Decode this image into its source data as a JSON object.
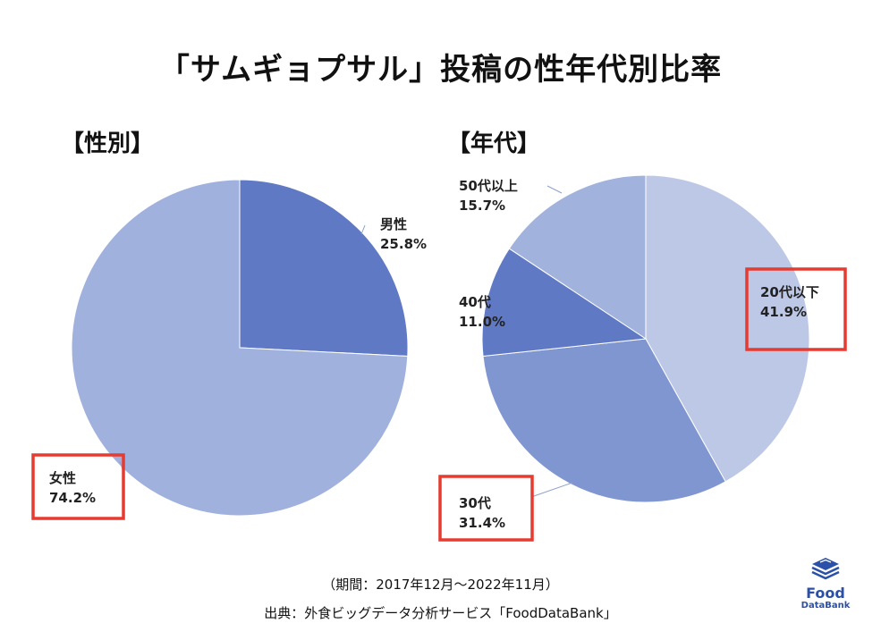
{
  "title": "「サムギョプサル」投稿の性年代別比率",
  "charts": {
    "gender_label": "【性別】",
    "age_label": "【年代】"
  },
  "footer": {
    "period": "（期間：2017年12月～2022年11月）",
    "source": "出典：外食ビッグデータ分析サービス「FoodDataBank」"
  },
  "logo": {
    "name": "Food",
    "sub": "DataBank",
    "icon": "stacked-layers-icon"
  },
  "colors": {
    "male": "#6079c4",
    "female": "#9fb1dc",
    "age_20s": "#bcc8e6",
    "age_30s": "#7f96d1",
    "age_40s": "#6079c4",
    "age_50s": "#a1b3dc",
    "highlight": "#e53b30"
  },
  "chart_data": [
    {
      "type": "pie",
      "title": "【性別】",
      "slices": [
        {
          "label": "男性",
          "value": 25.8,
          "display": "25.8%"
        },
        {
          "label": "女性",
          "value": 74.2,
          "display": "74.2%",
          "highlight": true
        }
      ]
    },
    {
      "type": "pie",
      "title": "【年代】",
      "slices": [
        {
          "label": "20代以下",
          "value": 41.9,
          "display": "41.9%",
          "highlight": true
        },
        {
          "label": "30代",
          "value": 31.4,
          "display": "31.4%",
          "highlight": true
        },
        {
          "label": "40代",
          "value": 11.0,
          "display": "11.0%"
        },
        {
          "label": "50代以上",
          "value": 15.7,
          "display": "15.7%"
        }
      ]
    }
  ]
}
